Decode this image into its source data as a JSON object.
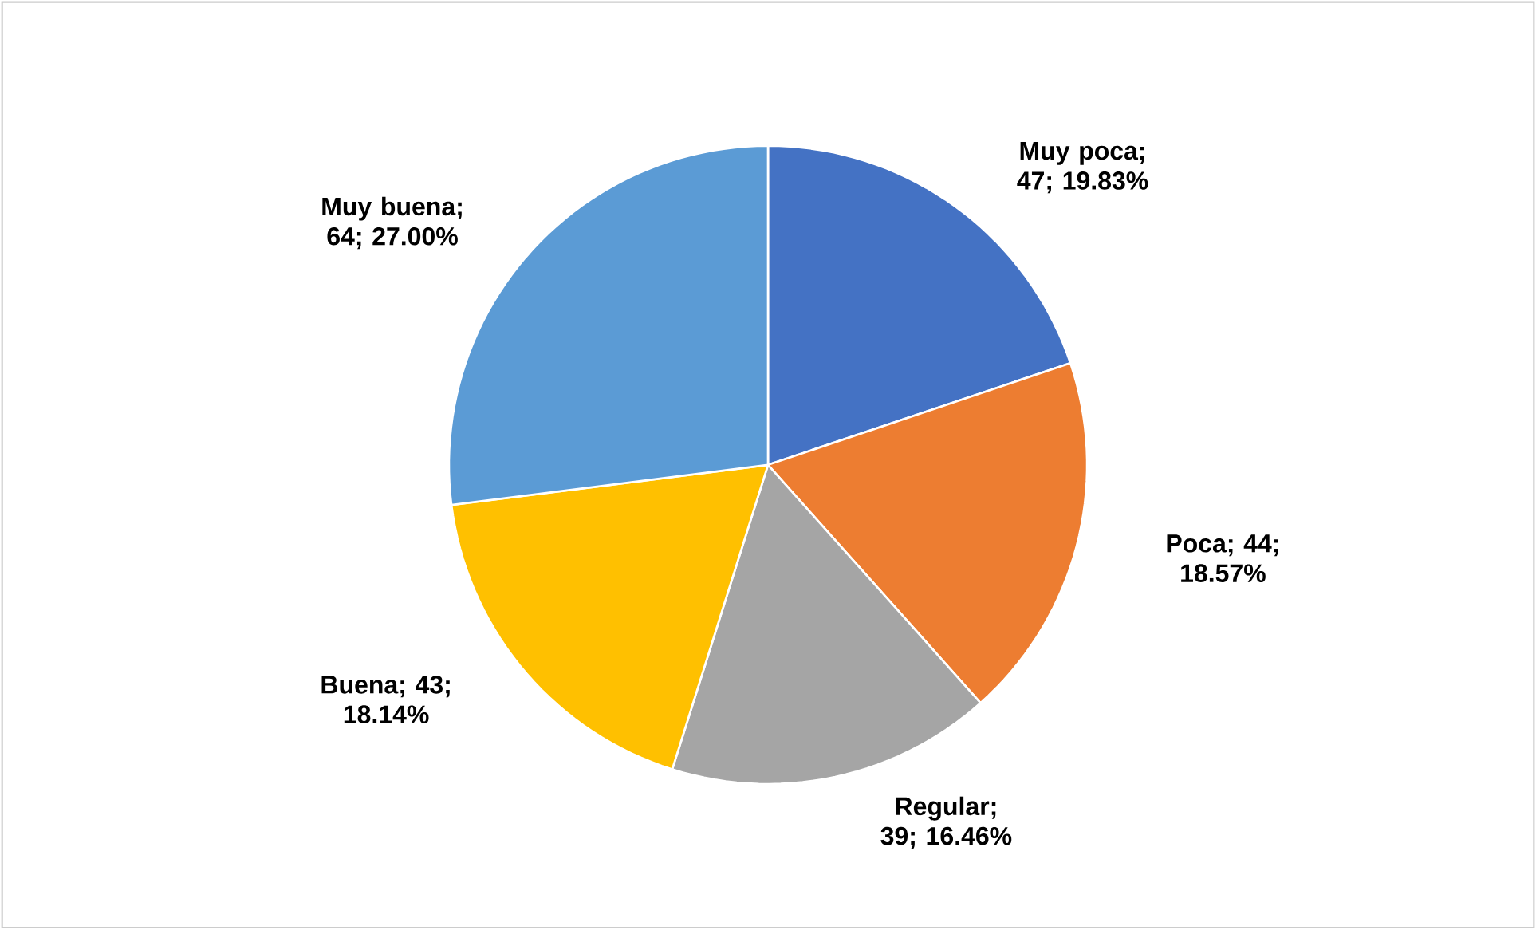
{
  "chart_data": {
    "type": "pie",
    "categories": [
      "Muy poca",
      "Poca",
      "Regular",
      "Buena",
      "Muy buena"
    ],
    "values": [
      47,
      44,
      39,
      43,
      64
    ],
    "colors": [
      "#4472c4",
      "#ed7d31",
      "#a5a5a5",
      "#ffc000",
      "#5b9bd5"
    ],
    "value_labels": [
      "; 47; 19.83%",
      "; 44; 18.57%",
      "; 39; 16.46%",
      "; 43; 18.14%",
      "; 64; 27.00%"
    ]
  }
}
